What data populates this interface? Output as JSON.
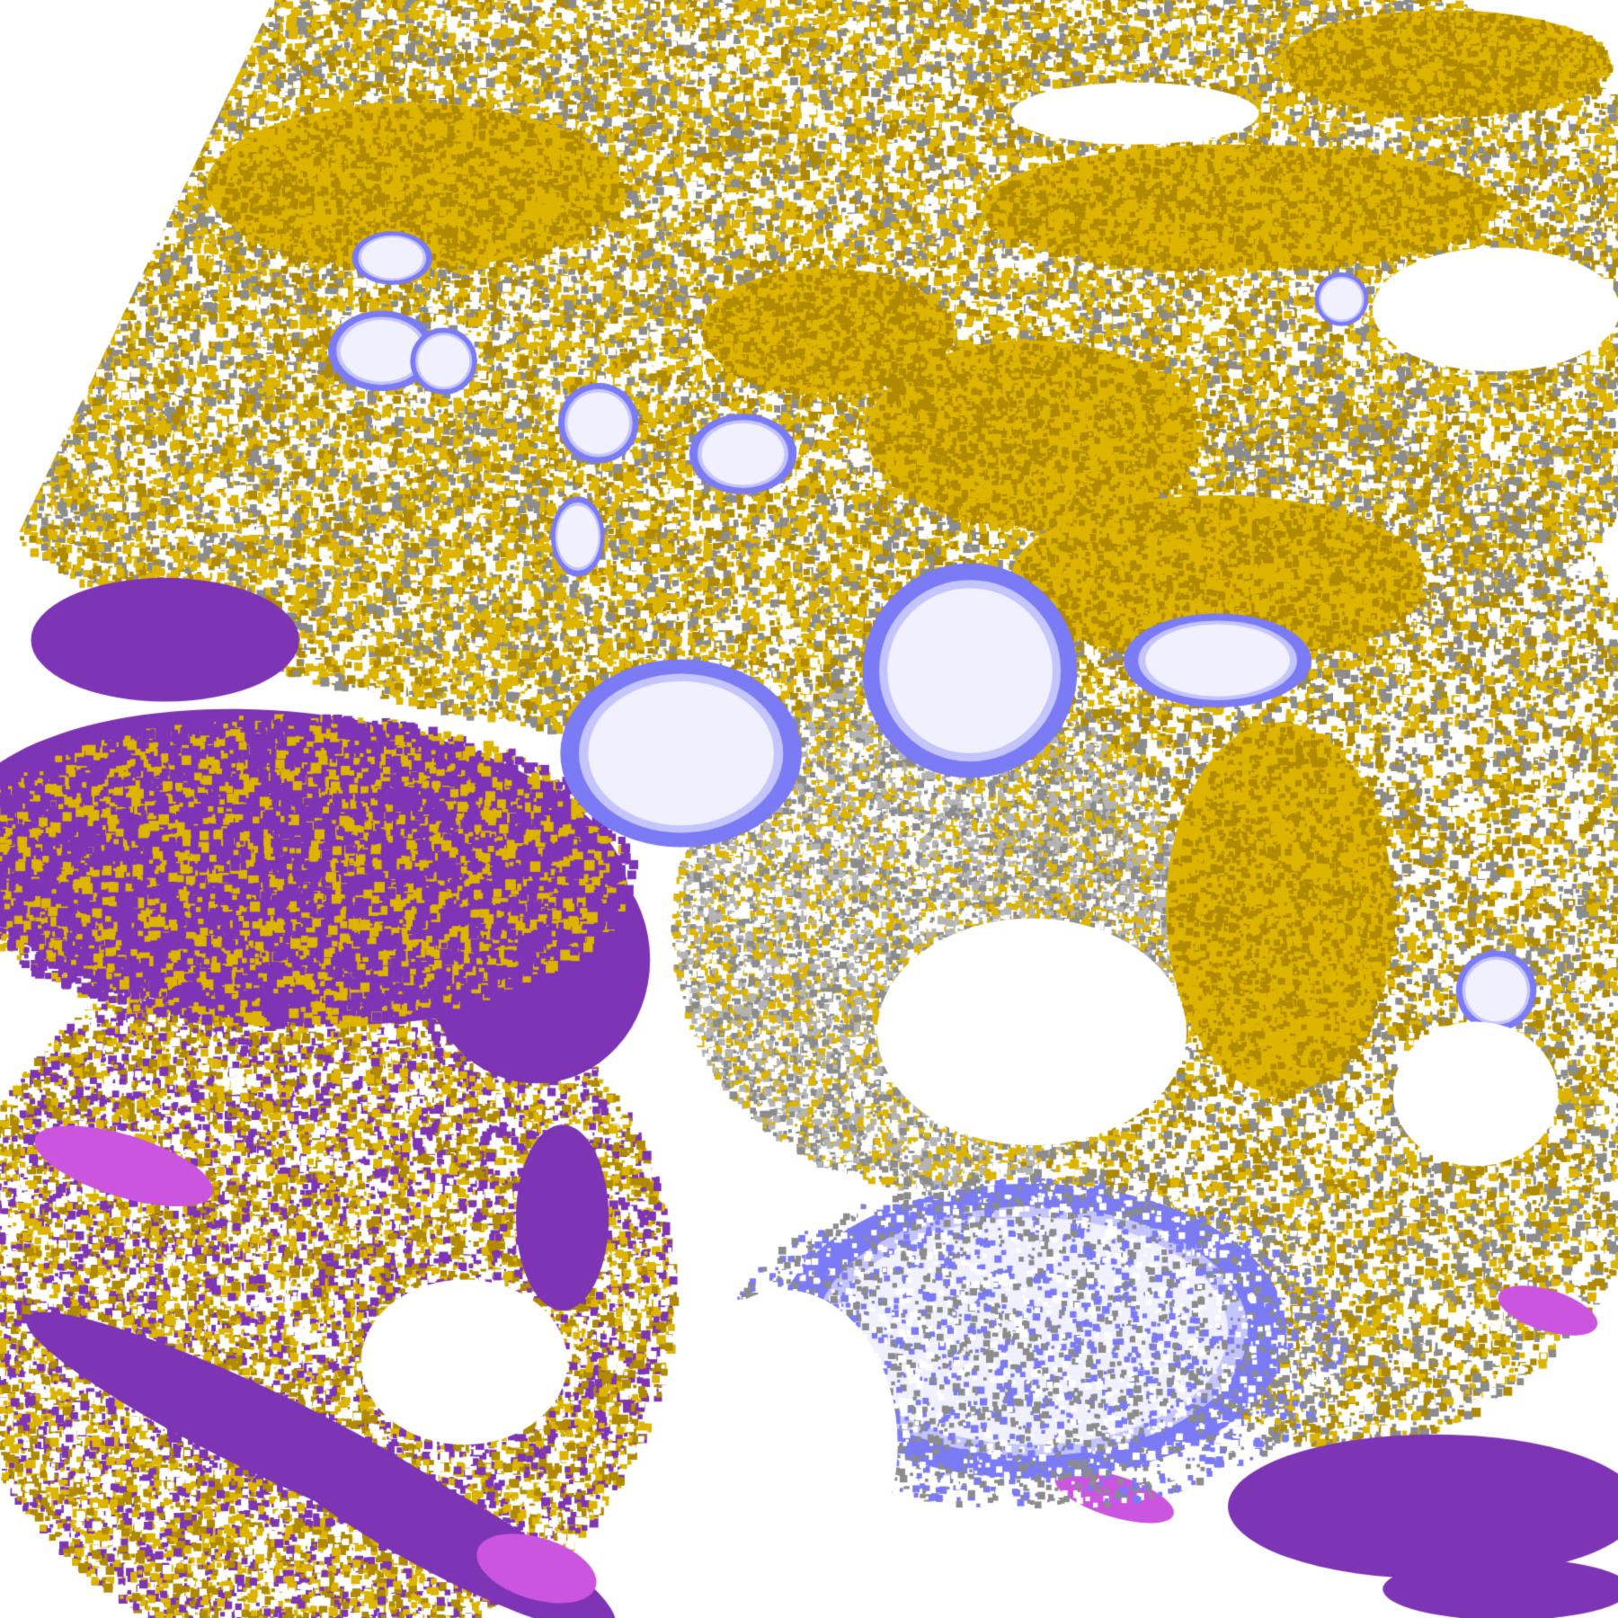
{
  "map": {
    "type": "satellite cloud classification",
    "palette": {
      "background": "#ffffff",
      "gold": "#DDB400",
      "dark_gold": "#B08A00",
      "gray": "#8C8C8C",
      "light_gray": "#B4B4B4",
      "purple": "#7E35B5",
      "magenta": "#CC55E0",
      "blue": "#7B7BF5",
      "pale_blue": "#C4C4FF",
      "near_white": "#F0F0FF"
    }
  }
}
